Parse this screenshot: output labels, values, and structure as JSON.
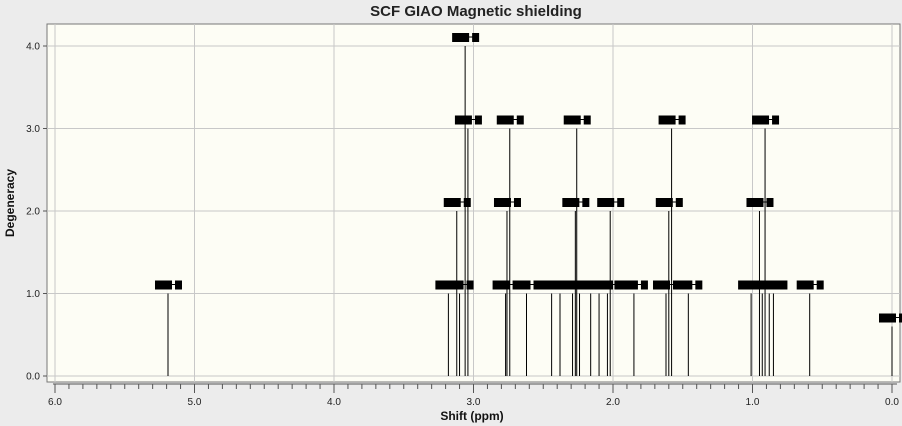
{
  "chart_data": {
    "type": "bar",
    "title": "SCF GIAO Magnetic shielding",
    "xlabel": "Shift (ppm)",
    "ylabel": "Degeneracy",
    "x_reversed": true,
    "xlim": [
      6.0,
      0.0
    ],
    "ylim": [
      0.0,
      4.2
    ],
    "x_ticks": [
      "6.0",
      "5.0",
      "4.0",
      "3.0",
      "2.0",
      "1.0",
      "0.0"
    ],
    "y_ticks": [
      "0.0",
      "1.0",
      "2.0",
      "3.0",
      "4.0"
    ],
    "grid": true,
    "colors": {
      "plot_bg": "#fdfdf5",
      "frame_bg": "#ececec",
      "stick": "#000000",
      "grid": "#c8c8c8"
    },
    "peaks": [
      {
        "x": 5.19,
        "y": 1
      },
      {
        "x": 3.18,
        "y": 1
      },
      {
        "x": 3.12,
        "y": 2
      },
      {
        "x": 3.1,
        "y": 1
      },
      {
        "x": 3.06,
        "y": 4
      },
      {
        "x": 3.04,
        "y": 3
      },
      {
        "x": 2.77,
        "y": 1
      },
      {
        "x": 2.76,
        "y": 2
      },
      {
        "x": 2.74,
        "y": 3
      },
      {
        "x": 2.62,
        "y": 1
      },
      {
        "x": 2.44,
        "y": 1
      },
      {
        "x": 2.38,
        "y": 1
      },
      {
        "x": 2.29,
        "y": 1
      },
      {
        "x": 2.27,
        "y": 2
      },
      {
        "x": 2.26,
        "y": 3
      },
      {
        "x": 2.24,
        "y": 1
      },
      {
        "x": 2.16,
        "y": 1
      },
      {
        "x": 2.1,
        "y": 1
      },
      {
        "x": 2.04,
        "y": 1
      },
      {
        "x": 2.02,
        "y": 2
      },
      {
        "x": 1.85,
        "y": 1
      },
      {
        "x": 1.62,
        "y": 1
      },
      {
        "x": 1.6,
        "y": 2
      },
      {
        "x": 1.58,
        "y": 3
      },
      {
        "x": 1.46,
        "y": 1
      },
      {
        "x": 1.01,
        "y": 1
      },
      {
        "x": 0.95,
        "y": 2
      },
      {
        "x": 0.93,
        "y": 1
      },
      {
        "x": 0.91,
        "y": 3
      },
      {
        "x": 0.88,
        "y": 1
      },
      {
        "x": 0.85,
        "y": 1
      },
      {
        "x": 0.59,
        "y": 1
      },
      {
        "x": 0.0,
        "y": 0.6
      }
    ]
  }
}
